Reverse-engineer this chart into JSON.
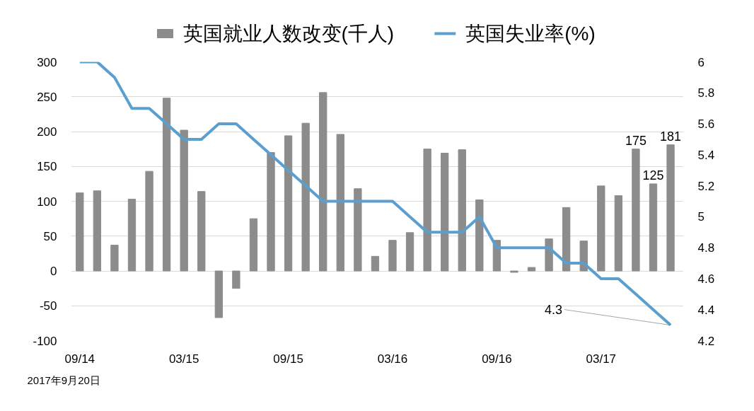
{
  "chart_data": {
    "type": "bar",
    "categories": [
      "09/14",
      null,
      null,
      null,
      null,
      null,
      "03/15",
      null,
      null,
      null,
      null,
      null,
      "09/15",
      null,
      null,
      null,
      null,
      null,
      "03/16",
      null,
      null,
      null,
      null,
      null,
      "09/16",
      null,
      null,
      null,
      null,
      null,
      "03/17",
      null,
      null,
      null,
      null
    ],
    "series": [
      {
        "name": "英国就业人数改变(千人)",
        "color": "#8c8c8c",
        "values": [
          112,
          115,
          37,
          103,
          143,
          248,
          202,
          114,
          -67,
          -25,
          75,
          170,
          194,
          212,
          256,
          196,
          118,
          21,
          44,
          55,
          175,
          169,
          174,
          102,
          44,
          -2,
          5,
          46,
          91,
          43,
          122,
          108,
          175,
          125,
          181
        ],
        "value_labels": [
          null,
          null,
          null,
          null,
          null,
          null,
          null,
          null,
          null,
          null,
          null,
          null,
          null,
          null,
          null,
          null,
          null,
          null,
          null,
          null,
          null,
          null,
          null,
          null,
          null,
          null,
          null,
          null,
          null,
          null,
          null,
          null,
          "175",
          "125",
          "181"
        ]
      },
      {
        "name": "英国失业率(%)",
        "type": "line",
        "axis": "y2",
        "color": "#5b9fcf",
        "values": [
          6,
          6,
          5.9,
          5.7,
          5.7,
          5.6,
          5.5,
          5.5,
          5.6,
          5.6,
          5.5,
          5.4,
          5.3,
          5.2,
          5.1,
          5.1,
          5.1,
          5.1,
          5.1,
          5.0,
          4.9,
          4.9,
          4.9,
          5.0,
          4.8,
          4.8,
          4.8,
          4.8,
          4.7,
          4.7,
          4.6,
          4.6,
          4.5,
          4.4,
          4.3
        ],
        "value_labels": [
          null,
          null,
          null,
          null,
          null,
          null,
          null,
          null,
          null,
          null,
          null,
          null,
          null,
          null,
          null,
          null,
          null,
          null,
          null,
          null,
          null,
          null,
          null,
          null,
          null,
          null,
          null,
          null,
          null,
          null,
          null,
          null,
          null,
          null,
          "4.3"
        ]
      }
    ],
    "ylim": [
      -100,
      300
    ],
    "yticks": [
      -100,
      -50,
      0,
      50,
      100,
      150,
      200,
      250,
      300
    ],
    "y2lim": [
      4.2,
      6
    ],
    "y2ticks": [
      4.2,
      4.4,
      4.6,
      4.8,
      5,
      5.2,
      5.4,
      5.6,
      5.8,
      6
    ],
    "grid": "y",
    "legend": "top",
    "annotations": [
      "2017年9月20日"
    ]
  }
}
